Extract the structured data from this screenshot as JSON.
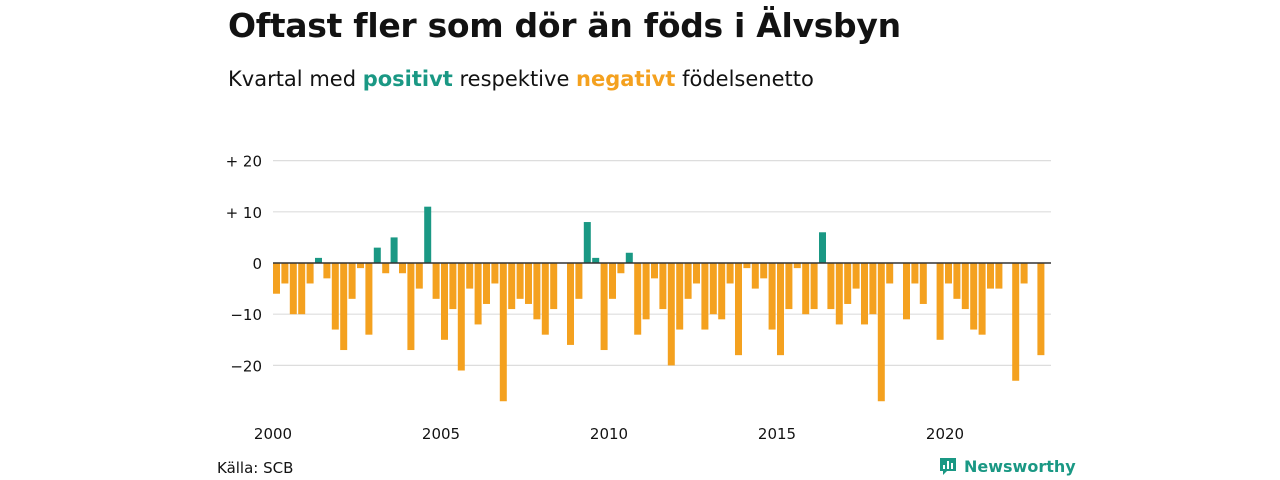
{
  "title": "Oftast fler som dör än föds i Älvsbyn",
  "subtitle": {
    "before": "Kvartal med ",
    "positive_word": "positivt",
    "middle": " respektive ",
    "negative_word": "negativt",
    "after": " födelsenetto"
  },
  "colors": {
    "positive": "#1a9884",
    "negative": "#f4a11f",
    "grid": "#dddddd",
    "zero_line": "#333333",
    "brand": "#1a9884"
  },
  "source": "Källa: SCB",
  "brand": {
    "name": "Newsworthy",
    "icon": "newsworthy-logo-icon"
  },
  "chart_data": {
    "type": "bar",
    "title": "Oftast fler som dör än föds i Älvsbyn",
    "xlabel": "",
    "ylabel": "",
    "ylim": [
      -27,
      20
    ],
    "y_ticks": [
      {
        "value": 20,
        "label": "+ 20"
      },
      {
        "value": 10,
        "label": "+ 10"
      },
      {
        "value": 0,
        "label": "0"
      },
      {
        "value": -10,
        "label": "−10"
      },
      {
        "value": -20,
        "label": "−20"
      }
    ],
    "x_ticks": [
      {
        "quarter_index": 0,
        "label": "2000"
      },
      {
        "quarter_index": 20,
        "label": "2005"
      },
      {
        "quarter_index": 40,
        "label": "2010"
      },
      {
        "quarter_index": 60,
        "label": "2015"
      },
      {
        "quarter_index": 80,
        "label": "2020"
      }
    ],
    "first_quarter": "2000 Q1",
    "values": [
      -6,
      -4,
      -10,
      -10,
      -4,
      1,
      -3,
      -13,
      -17,
      -7,
      -1,
      -14,
      3,
      -2,
      5,
      -2,
      -17,
      -5,
      11,
      -7,
      -15,
      -9,
      -21,
      -5,
      -12,
      -8,
      -4,
      -27,
      -9,
      -7,
      -8,
      -11,
      -14,
      -9,
      0,
      -16,
      -7,
      8,
      1,
      -17,
      -7,
      -2,
      2,
      -14,
      -11,
      -3,
      -9,
      -20,
      -13,
      -7,
      -4,
      -13,
      -10,
      -11,
      -4,
      -18,
      -1,
      -5,
      -3,
      -13,
      -18,
      -9,
      -1,
      -10,
      -9,
      6,
      -9,
      -12,
      -8,
      -5,
      -12,
      -10,
      -27,
      -4,
      0,
      -11,
      -4,
      -8,
      0,
      -15,
      -4,
      -7,
      -9,
      -13,
      -14,
      -5,
      -5,
      0,
      -23,
      -4,
      0,
      -18
    ],
    "grid": true
  }
}
